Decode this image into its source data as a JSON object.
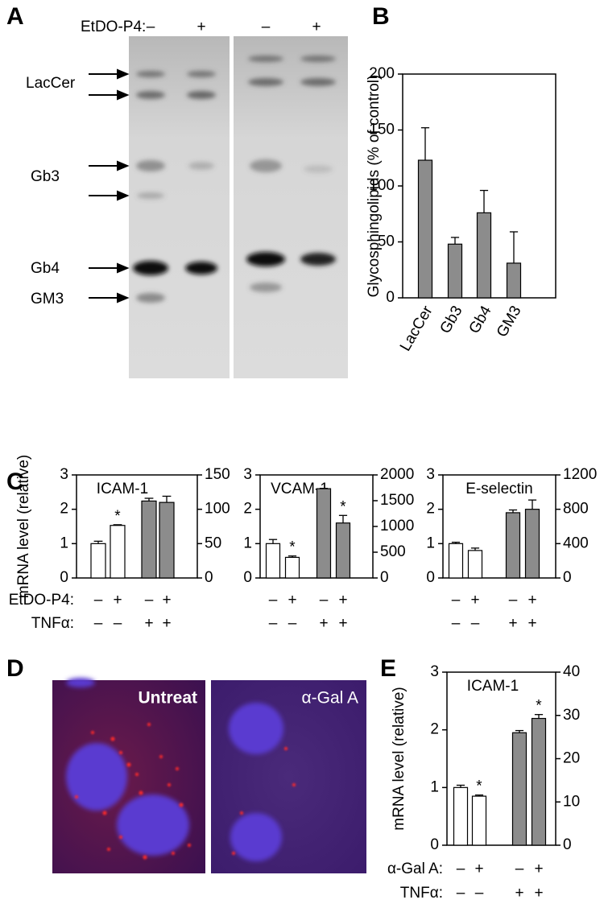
{
  "panel_labels": [
    "A",
    "B",
    "C",
    "D",
    "E"
  ],
  "gel": {
    "treatment_label": "EtDO-P4:",
    "lanes": [
      "–",
      "+",
      "–",
      "+"
    ],
    "bands": [
      "LacCer",
      "Gb3",
      "Gb4",
      "GM3"
    ]
  },
  "micrograph": {
    "labels": [
      "Untreat",
      "α-Gal A"
    ]
  },
  "chart_data": [
    {
      "type": "bar",
      "ylabel": "Glycosphingolipids (% of control)",
      "categories": [
        "LacCer",
        "Gb3",
        "Gb4",
        "GM3"
      ],
      "series": [
        {
          "color": "#8c8c8c",
          "values": [
            123,
            48,
            76,
            31
          ],
          "errors": [
            29,
            6,
            20,
            28
          ]
        }
      ],
      "ylim": [
        0,
        200
      ],
      "yticks": [
        0,
        50,
        100,
        150,
        200
      ]
    },
    {
      "type": "bar",
      "title": "ICAM-1",
      "ylabel": "mRNA level (relative)",
      "series": [
        {
          "color": "#ffffff",
          "values": [
            1.0,
            1.53,
            null,
            null
          ],
          "errors": [
            0.07,
            0.02,
            null,
            null
          ],
          "annotations": [
            null,
            "*",
            null,
            null
          ]
        },
        {
          "color": "#8c8c8c",
          "axis": "y2",
          "values": [
            null,
            null,
            112,
            110
          ],
          "errors": [
            null,
            null,
            4,
            9
          ]
        }
      ],
      "ylim": [
        0,
        3
      ],
      "yticks": [
        0,
        1,
        2,
        3
      ],
      "y2lim": [
        0,
        150
      ],
      "y2ticks": [
        0,
        50,
        100,
        150
      ],
      "treatments": {
        "labels": [
          "EtDO-P4:",
          "TNFα:"
        ],
        "rows": [
          [
            "–",
            "+",
            "–",
            "+"
          ],
          [
            "–",
            "–",
            "+",
            "+"
          ]
        ]
      }
    },
    {
      "type": "bar",
      "title": "VCAM-1",
      "series": [
        {
          "color": "#ffffff",
          "values": [
            1.0,
            0.6,
            null,
            null
          ],
          "errors": [
            0.12,
            0.04,
            null,
            null
          ],
          "annotations": [
            null,
            "*",
            null,
            null
          ]
        },
        {
          "color": "#8c8c8c",
          "axis": "y2",
          "values": [
            null,
            null,
            1733,
            1067
          ],
          "errors": [
            null,
            null,
            7,
            147
          ],
          "annotations": [
            null,
            null,
            null,
            "*"
          ]
        }
      ],
      "ylim": [
        0,
        3
      ],
      "yticks": [
        0,
        1,
        2,
        3
      ],
      "y2lim": [
        0,
        2000
      ],
      "y2ticks": [
        0,
        500,
        1000,
        1500,
        2000
      ],
      "treatments": {
        "rows": [
          [
            "–",
            "+",
            "–",
            "+"
          ],
          [
            "–",
            "–",
            "+",
            "+"
          ]
        ]
      }
    },
    {
      "type": "bar",
      "title": "E-selectin",
      "series": [
        {
          "color": "#ffffff",
          "values": [
            1.0,
            0.8,
            null,
            null
          ],
          "errors": [
            0.04,
            0.07,
            null,
            null
          ]
        },
        {
          "color": "#8c8c8c",
          "axis": "y2",
          "values": [
            null,
            null,
            760,
            800
          ],
          "errors": [
            null,
            null,
            32,
            108
          ]
        }
      ],
      "ylim": [
        0,
        3
      ],
      "yticks": [
        0,
        1,
        2,
        3
      ],
      "y2lim": [
        0,
        1200
      ],
      "y2ticks": [
        0,
        400,
        800,
        1200
      ],
      "treatments": {
        "rows": [
          [
            "–",
            "+",
            "–",
            "+"
          ],
          [
            "–",
            "–",
            "+",
            "+"
          ]
        ]
      }
    },
    {
      "type": "bar",
      "title": "ICAM-1",
      "ylabel": "mRNA level (relative)",
      "series": [
        {
          "color": "#ffffff",
          "values": [
            1.0,
            0.85,
            null,
            null
          ],
          "errors": [
            0.04,
            0.02,
            null,
            null
          ],
          "annotations": [
            null,
            "*",
            null,
            null
          ]
        },
        {
          "color": "#8c8c8c",
          "axis": "y2",
          "values": [
            null,
            null,
            26,
            29.3
          ],
          "errors": [
            null,
            null,
            0.5,
            0.9
          ],
          "annotations": [
            null,
            null,
            null,
            "*"
          ]
        }
      ],
      "ylim": [
        0,
        3
      ],
      "yticks": [
        0,
        1,
        2,
        3
      ],
      "y2lim": [
        0,
        40
      ],
      "y2ticks": [
        0,
        10,
        20,
        30,
        40
      ],
      "treatments": {
        "labels": [
          "α-Gal A:",
          "TNFα:"
        ],
        "rows": [
          [
            "–",
            "+",
            "–",
            "+"
          ],
          [
            "–",
            "–",
            "+",
            "+"
          ]
        ]
      }
    }
  ]
}
